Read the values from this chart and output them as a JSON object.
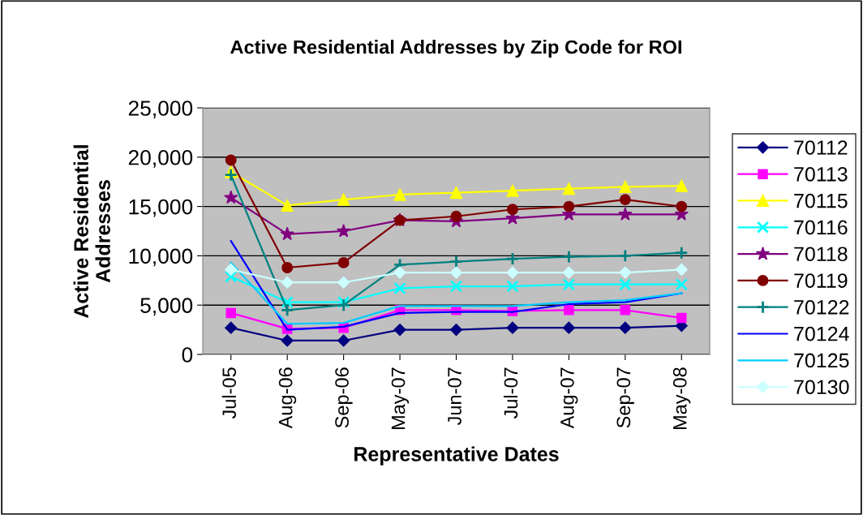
{
  "chart_data": {
    "type": "line",
    "title": "Active Residential Addresses by Zip Code for ROI",
    "xlabel": "Representative Dates",
    "ylabel": "Active Residential\nAddresses",
    "categories": [
      "Jul-05",
      "Aug-06",
      "Sep-06",
      "May-07",
      "Jun-07",
      "Jul-07",
      "Aug-07",
      "Sep-07",
      "May-08"
    ],
    "ylim": [
      0,
      25000
    ],
    "yticks": [
      {
        "value": 0,
        "label": "0"
      },
      {
        "value": 5000,
        "label": "5,000"
      },
      {
        "value": 10000,
        "label": "10,000"
      },
      {
        "value": 15000,
        "label": "15,000"
      },
      {
        "value": 20000,
        "label": "20,000"
      },
      {
        "value": 25000,
        "label": "25,000"
      }
    ],
    "grid": "y",
    "legend": "right",
    "line_style": "solid",
    "series": [
      {
        "name": "70112",
        "color": "#000080",
        "marker": "diamond",
        "values": [
          2700,
          1400,
          1400,
          2500,
          2500,
          2700,
          2700,
          2700,
          2900
        ]
      },
      {
        "name": "70113",
        "color": "#ff00ff",
        "marker": "square",
        "values": [
          4200,
          2600,
          2700,
          4500,
          4500,
          4400,
          4500,
          4500,
          3700
        ]
      },
      {
        "name": "70115",
        "color": "#ffff00",
        "marker": "triangle",
        "values": [
          18500,
          15100,
          15700,
          16200,
          16400,
          16600,
          16800,
          17000,
          17100
        ]
      },
      {
        "name": "70116",
        "color": "#00ffff",
        "marker": "cross",
        "values": [
          7900,
          5300,
          5300,
          6700,
          6900,
          6900,
          7100,
          7100,
          7100
        ]
      },
      {
        "name": "70118",
        "color": "#800080",
        "marker": "star",
        "values": [
          15900,
          12200,
          12500,
          13600,
          13500,
          13800,
          14200,
          14200,
          14200
        ]
      },
      {
        "name": "70119",
        "color": "#800000",
        "marker": "circle",
        "values": [
          19700,
          8800,
          9300,
          13600,
          14000,
          14700,
          15000,
          15700,
          15000
        ]
      },
      {
        "name": "70122",
        "color": "#008080",
        "marker": "plus",
        "values": [
          18200,
          4500,
          5000,
          9100,
          9400,
          9700,
          9900,
          10000,
          10300
        ]
      },
      {
        "name": "70124",
        "color": "#0000ff",
        "marker": "none",
        "values": [
          11500,
          2500,
          2800,
          4200,
          4300,
          4300,
          5100,
          5300,
          6200
        ]
      },
      {
        "name": "70125",
        "color": "#00ccff",
        "marker": "none",
        "values": [
          9300,
          3100,
          3200,
          4900,
          4900,
          4900,
          5300,
          5500,
          6200
        ]
      },
      {
        "name": "70130",
        "color": "#ccffff",
        "marker": "diamond",
        "values": [
          8600,
          7300,
          7300,
          8300,
          8300,
          8300,
          8300,
          8300,
          8600
        ]
      }
    ]
  }
}
